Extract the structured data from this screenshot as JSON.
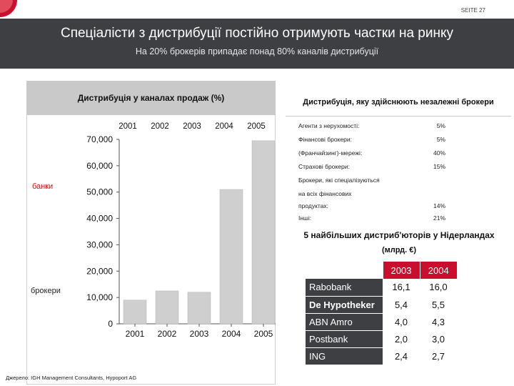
{
  "page": {
    "label": "SEITE 27",
    "title": "Спеціалісти з дистрибуції постійно отримують частки на ринку",
    "subtitle": "На 20% брокерів припадає понад 80% каналів дистрибуції"
  },
  "left_panel": {
    "title": "Дистрибуція у каналах продаж (%)",
    "label_banks": "банки",
    "label_brokers": "брокери"
  },
  "chart_data": {
    "type": "bar",
    "categories": [
      "2001",
      "2002",
      "2003",
      "2004",
      "2005"
    ],
    "top_labels": [
      "2001",
      "2002",
      "2003",
      "2004",
      "2005"
    ],
    "values": [
      9000,
      12500,
      12000,
      51000,
      69500
    ],
    "yticks": [
      "0",
      "10,000",
      "20,000",
      "30,000",
      "40,000",
      "50,000",
      "60,000",
      "70,000"
    ],
    "ylim": [
      0,
      70000
    ],
    "bar_color": "#cfcfcf",
    "grid": false
  },
  "right_panel": {
    "title": "Дистрибуція, яку здійснюють незалежні брокери",
    "rows": [
      {
        "name": "Агенти з нерухомості:",
        "share": "5%"
      },
      {
        "name": "Фінансові брокери:",
        "share": "5%"
      },
      {
        "name": "(Франчайзинг)-мережі:",
        "share": "40%"
      },
      {
        "name": "Страхові брокери:",
        "share": "15%"
      },
      {
        "name": "Брокери, які спеціалізуються",
        "share": ""
      },
      {
        "name": "на всіх фінансових",
        "share": ""
      },
      {
        "name": "продуктах:",
        "share": "14%"
      },
      {
        "name": "Інші:",
        "share": "21%"
      }
    ]
  },
  "top5": {
    "title": "5 найбільших дистриб'юторів у Нідерландах",
    "unit": "(млрд. €)",
    "years": [
      "2003",
      "2004"
    ],
    "rows": [
      {
        "name": "Rabobank",
        "v2003": "16,1",
        "v2004": "16,0",
        "bold": false
      },
      {
        "name": "De Hypotheker",
        "v2003": "5,4",
        "v2004": "5,5",
        "bold": true
      },
      {
        "name": "ABN Amro",
        "v2003": "4,0",
        "v2004": "4,3",
        "bold": false
      },
      {
        "name": "Postbank",
        "v2003": "2,0",
        "v2004": "3,0",
        "bold": false
      },
      {
        "name": "ING",
        "v2003": "2,4",
        "v2004": "2,7",
        "bold": false
      }
    ]
  },
  "source": "Джерело: IGH Management Consultants, Hypoport AG",
  "colors": {
    "header": "#3d3f42",
    "accent": "#c8102e",
    "panel": "#c9c9c9"
  }
}
